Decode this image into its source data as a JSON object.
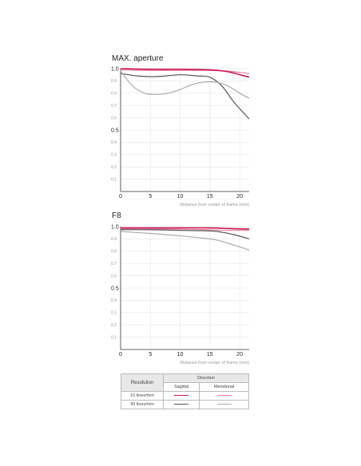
{
  "colors": {
    "sagittal_10": "#c8174f",
    "meridional_10": "#e8829c",
    "sagittal_30": "#555555",
    "meridional_30": "#aaaaaa"
  },
  "chart_data": [
    {
      "type": "line",
      "title": "MAX. aperture",
      "xlabel": "Distance from center of frame (mm)",
      "ylabel": "",
      "xlim": [
        0,
        21.6
      ],
      "ylim": [
        0,
        1.0
      ],
      "x_ticks": [
        0,
        5,
        10,
        15,
        20
      ],
      "y_ticks_major": [
        "1.0",
        "0.5"
      ],
      "y_ticks_minor": [
        "0.9",
        "0.8",
        "0.7",
        "0.6",
        "0.4",
        "0.3",
        "0.2",
        "0.1"
      ],
      "grid": true,
      "series": [
        {
          "key": "meridional_10",
          "x": [
            0,
            5,
            10,
            15,
            18,
            21.6
          ],
          "y": [
            0.99,
            0.985,
            0.985,
            0.985,
            0.98,
            0.96
          ]
        },
        {
          "key": "sagittal_10",
          "x": [
            0,
            5,
            10,
            15,
            18,
            21.6
          ],
          "y": [
            1.0,
            0.995,
            0.995,
            0.99,
            0.975,
            0.93
          ]
        },
        {
          "key": "sagittal_30",
          "x": [
            0,
            3,
            6,
            10,
            13,
            15,
            17,
            19,
            21.6
          ],
          "y": [
            0.96,
            0.94,
            0.935,
            0.95,
            0.94,
            0.93,
            0.86,
            0.73,
            0.59
          ]
        },
        {
          "key": "meridional_30",
          "x": [
            0,
            2,
            4,
            6,
            8,
            10,
            12,
            14,
            16,
            18,
            20,
            21.6
          ],
          "y": [
            0.98,
            0.86,
            0.8,
            0.79,
            0.8,
            0.83,
            0.87,
            0.89,
            0.89,
            0.86,
            0.8,
            0.76
          ]
        }
      ]
    },
    {
      "type": "line",
      "title": "F8",
      "xlabel": "Distance from center of frame (mm)",
      "ylabel": "",
      "xlim": [
        0,
        21.6
      ],
      "ylim": [
        0,
        1.0
      ],
      "x_ticks": [
        0,
        5,
        10,
        15,
        20
      ],
      "y_ticks_major": [
        "1.0",
        "0.5"
      ],
      "y_ticks_minor": [
        "0.9",
        "0.8",
        "0.7",
        "0.6",
        "0.4",
        "0.3",
        "0.2",
        "0.1"
      ],
      "grid": true,
      "series": [
        {
          "key": "sagittal_10",
          "x": [
            0,
            5,
            10,
            15,
            18,
            21.6
          ],
          "y": [
            0.99,
            0.99,
            0.99,
            0.99,
            0.985,
            0.98
          ]
        },
        {
          "key": "meridional_10",
          "x": [
            0,
            5,
            10,
            15,
            18,
            21.6
          ],
          "y": [
            0.98,
            0.98,
            0.98,
            0.975,
            0.97,
            0.97
          ]
        },
        {
          "key": "sagittal_30",
          "x": [
            0,
            5,
            10,
            15,
            17,
            19,
            21.6
          ],
          "y": [
            0.975,
            0.975,
            0.97,
            0.965,
            0.955,
            0.935,
            0.9
          ]
        },
        {
          "key": "meridional_30",
          "x": [
            0,
            5,
            10,
            15,
            17,
            19,
            21.6
          ],
          "y": [
            0.96,
            0.945,
            0.925,
            0.9,
            0.88,
            0.85,
            0.81
          ]
        }
      ]
    }
  ],
  "legend": {
    "resolution_header": "Resolution",
    "direction_header": "Direction",
    "sagittal_label": "Sagittal",
    "meridional_label": "Meridional",
    "row_10": "10 lines/mm",
    "row_30": "30 lines/mm"
  }
}
